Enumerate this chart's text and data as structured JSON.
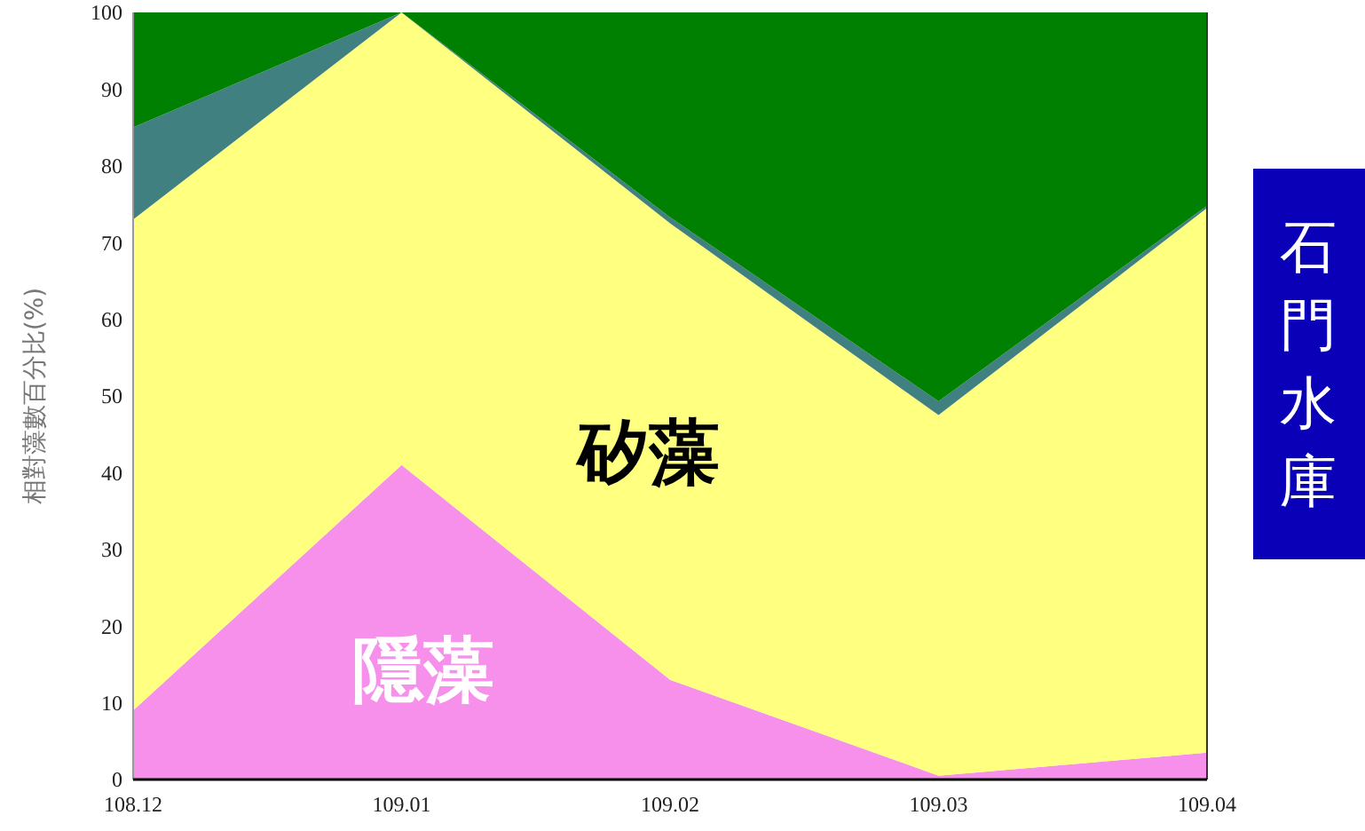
{
  "chart_data": {
    "type": "area",
    "stacked": true,
    "title": "石門水庫",
    "ylabel": "相對藻數百分比(%)",
    "categories": [
      "108.12",
      "109.01",
      "109.02",
      "109.03",
      "109.04"
    ],
    "series": [
      {
        "name": "隱藻",
        "color": "#f690ea",
        "values": [
          9,
          41,
          13,
          0.5,
          3.5
        ]
      },
      {
        "name": "矽藻",
        "color": "#ffff80",
        "values": [
          64,
          59,
          59.5,
          47,
          71
        ]
      },
      {
        "color": "#408080",
        "values": [
          12,
          0,
          0.8,
          1.8,
          0.3
        ]
      },
      {
        "color": "#008000",
        "values": [
          15,
          0,
          26.7,
          50.7,
          25.2
        ]
      }
    ],
    "ylim": [
      0,
      100
    ],
    "yticks": [
      0,
      10,
      20,
      30,
      40,
      50,
      60,
      70,
      80,
      90,
      100
    ],
    "grid": false
  }
}
